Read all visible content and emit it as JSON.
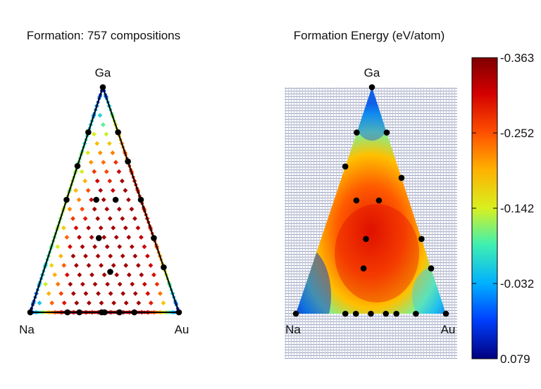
{
  "chart_data": [
    {
      "type": "scatter",
      "title": "Formation: 757 compositions",
      "vertices": {
        "top": "Ga",
        "left": "Na",
        "right": "Au"
      },
      "elements": [
        "Na",
        "Ga",
        "Au"
      ]
    },
    {
      "type": "heatmap",
      "title": "Formation Energy (eV/atom)",
      "vertices": {
        "top": "Ga",
        "left": "Na",
        "right": "Au"
      },
      "colorbar": {
        "ticks": [
          "-0.363",
          "-0.252",
          "-0.142",
          "-0.032",
          "0.079"
        ],
        "range": [
          -0.363,
          0.079
        ]
      },
      "ground_state_points": [
        {
          "a": 0.1,
          "b": 0.0
        },
        {
          "a": 0.0,
          "b": 0.5
        },
        {
          "a": 0.0,
          "b": 0.6
        },
        {
          "a": 0.0,
          "b": 0.75
        },
        {
          "a": 0.0,
          "b": 0.92
        },
        {
          "a": 0.0,
          "b": 1.0
        },
        {
          "a": 0.0,
          "b": 0.0
        },
        {
          "a": 1.0,
          "b": 0.0
        }
      ]
    }
  ],
  "colors": {
    "frame": "#000000",
    "dot": "#000000",
    "grid": "#9aa0bd"
  }
}
